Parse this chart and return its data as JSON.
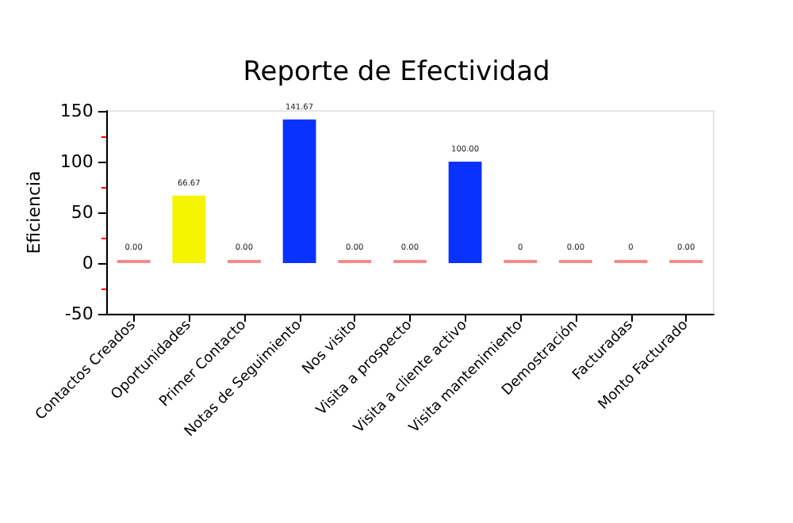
{
  "chart_data": {
    "type": "bar",
    "title": "Reporte de Efectividad",
    "ylabel": "Eficiencia",
    "categories": [
      "Contactos Creados",
      "Oportunidades",
      "Primer Contacto",
      "Notas de Seguimiento",
      "Nos visito",
      "Visita a prospecto",
      "Visita a cliente activo",
      "Visita mantenimiento",
      "Demostración",
      "Facturadas",
      "Monto Facturado"
    ],
    "values": [
      0,
      66.67,
      0,
      141.67,
      0,
      0,
      100,
      0,
      0,
      0,
      0
    ],
    "value_labels": [
      "0.00",
      "66.67",
      "0.00",
      "141.67",
      "0.00",
      "0.00",
      "100.00",
      "0",
      "0.00",
      "0",
      "0.00"
    ],
    "colors": [
      "#f48a8a",
      "#f5f500",
      "#f48a8a",
      "#0a32ff",
      "#f48a8a",
      "#f48a8a",
      "#0a32ff",
      "#f48a8a",
      "#f48a8a",
      "#f48a8a",
      "#f48a8a"
    ],
    "ylim": [
      -50,
      150
    ],
    "yticks": [
      -50,
      0,
      50,
      100,
      150
    ],
    "grid": false
  }
}
